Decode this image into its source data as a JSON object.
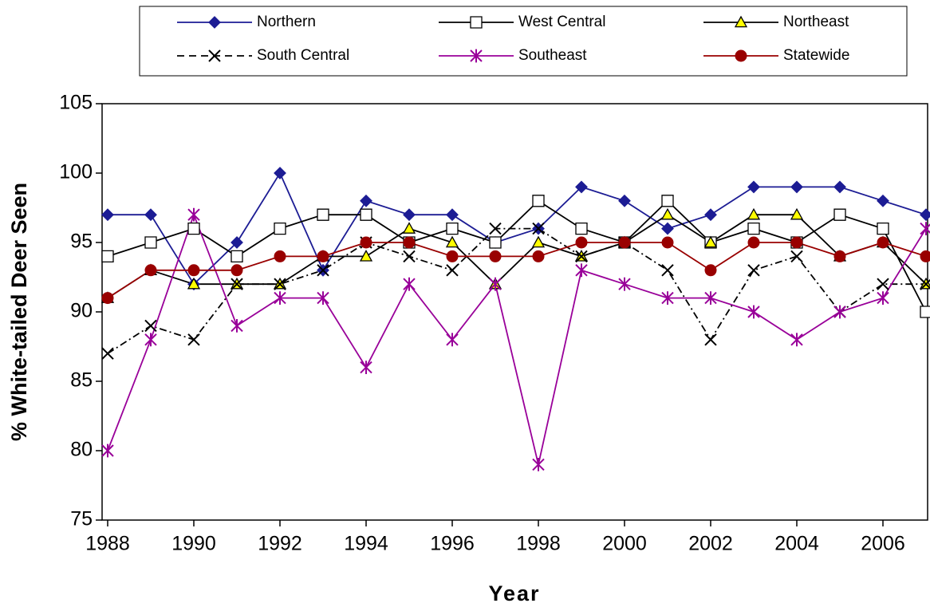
{
  "chart_data": {
    "type": "line",
    "x_label": "Year",
    "y_label": "% White-tailed Deer Seen",
    "x": [
      1988,
      1989,
      1990,
      1991,
      1992,
      1993,
      1994,
      1995,
      1996,
      1997,
      1998,
      1999,
      2000,
      2001,
      2002,
      2003,
      2004,
      2005,
      2006,
      2007
    ],
    "xlim": [
      1988,
      2007
    ],
    "xticks": [
      1988,
      1990,
      1992,
      1994,
      1996,
      1998,
      2000,
      2002,
      2004,
      2006
    ],
    "ylim": [
      75,
      105
    ],
    "yticks": [
      75,
      80,
      85,
      90,
      95,
      100,
      105
    ],
    "legend": "top",
    "series": [
      {
        "name": "Northern",
        "color": "#1c1c94",
        "marker": "diamond",
        "marker_fill": "#1c1c94",
        "dashed": false,
        "values": [
          97,
          97,
          92,
          95,
          100,
          93,
          98,
          97,
          97,
          95,
          96,
          99,
          98,
          96,
          97,
          99,
          99,
          99,
          98,
          97
        ]
      },
      {
        "name": "West Central",
        "color": "#000000",
        "marker": "square",
        "marker_fill": "#ffffff",
        "dashed": false,
        "values": [
          94,
          95,
          96,
          94,
          96,
          97,
          97,
          95,
          96,
          95,
          98,
          96,
          95,
          98,
          95,
          96,
          95,
          97,
          96,
          90
        ]
      },
      {
        "name": "Northeast",
        "color": "#000000",
        "marker": "triangle",
        "marker_fill": "#ffff00",
        "dashed": false,
        "values": [
          91,
          93,
          92,
          92,
          92,
          94,
          94,
          96,
          95,
          92,
          95,
          94,
          95,
          97,
          95,
          97,
          97,
          94,
          95,
          92
        ]
      },
      {
        "name": "South Central",
        "color": "#000000",
        "marker": "x",
        "marker_fill": "#000000",
        "dashed": true,
        "values": [
          87,
          89,
          88,
          92,
          92,
          93,
          95,
          94,
          93,
          96,
          96,
          94,
          95,
          93,
          88,
          93,
          94,
          90,
          92,
          92
        ]
      },
      {
        "name": "Southeast",
        "color": "#990099",
        "marker": "asterisk",
        "marker_fill": "#990099",
        "dashed": false,
        "values": [
          80,
          88,
          97,
          89,
          91,
          91,
          86,
          92,
          88,
          92,
          79,
          93,
          92,
          91,
          91,
          90,
          88,
          90,
          91,
          96
        ]
      },
      {
        "name": "Statewide",
        "color": "#990000",
        "marker": "circle",
        "marker_fill": "#990000",
        "dashed": false,
        "values": [
          91,
          93,
          93,
          93,
          94,
          94,
          95,
          95,
          94,
          94,
          94,
          95,
          95,
          95,
          93,
          95,
          95,
          94,
          95,
          94
        ]
      }
    ]
  }
}
